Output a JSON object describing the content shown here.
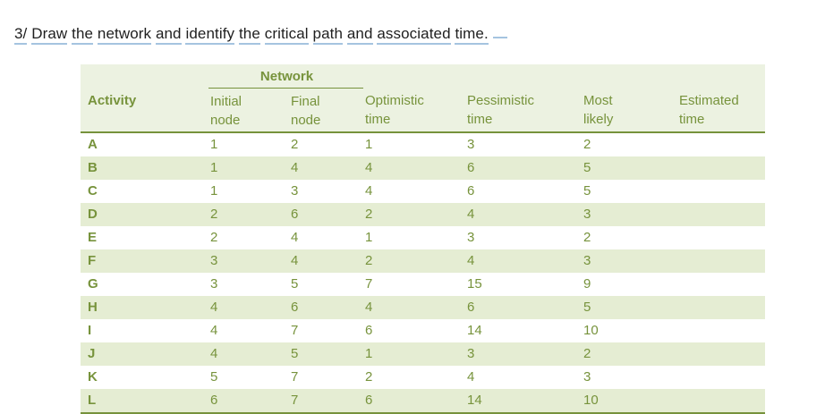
{
  "title": {
    "text": "3/ Draw the network and identify the critical path and associated time.",
    "underline_color": "#a5c4e0",
    "text_color": "#1f1f1f"
  },
  "table": {
    "group_header": "Network",
    "columns": [
      {
        "label": "Activity",
        "lines": [
          "Activity"
        ]
      },
      {
        "label": "Initial node",
        "lines": [
          "Initial",
          "node"
        ]
      },
      {
        "label": "Final node",
        "lines": [
          "Final",
          "node"
        ]
      },
      {
        "label": "Optimistic time",
        "lines": [
          "Optimistic",
          "time"
        ]
      },
      {
        "label": "Pessimistic time",
        "lines": [
          "Pessimistic",
          "time"
        ]
      },
      {
        "label": "Most likely",
        "lines": [
          "Most",
          "likely"
        ]
      },
      {
        "label": "Estimated time",
        "lines": [
          "Estimated",
          "time"
        ]
      }
    ],
    "colors": {
      "text": "#77933c",
      "border": "#76923c",
      "band": "#e5edd3",
      "header_bg": "#ecf2e1"
    },
    "rows": [
      {
        "activity": "A",
        "initial": "1",
        "final": "2",
        "optimistic": "1",
        "pessimistic": "3",
        "most_likely": "2",
        "estimated": ""
      },
      {
        "activity": "B",
        "initial": "1",
        "final": "4",
        "optimistic": "4",
        "pessimistic": "6",
        "most_likely": "5",
        "estimated": ""
      },
      {
        "activity": "C",
        "initial": "1",
        "final": "3",
        "optimistic": "4",
        "pessimistic": "6",
        "most_likely": "5",
        "estimated": ""
      },
      {
        "activity": "D",
        "initial": "2",
        "final": "6",
        "optimistic": "2",
        "pessimistic": "4",
        "most_likely": "3",
        "estimated": ""
      },
      {
        "activity": "E",
        "initial": "2",
        "final": "4",
        "optimistic": "1",
        "pessimistic": "3",
        "most_likely": "2",
        "estimated": ""
      },
      {
        "activity": "F",
        "initial": "3",
        "final": "4",
        "optimistic": "2",
        "pessimistic": "4",
        "most_likely": "3",
        "estimated": ""
      },
      {
        "activity": "G",
        "initial": "3",
        "final": "5",
        "optimistic": "7",
        "pessimistic": "15",
        "most_likely": "9",
        "estimated": ""
      },
      {
        "activity": "H",
        "initial": "4",
        "final": "6",
        "optimistic": "4",
        "pessimistic": "6",
        "most_likely": "5",
        "estimated": ""
      },
      {
        "activity": "I",
        "initial": "4",
        "final": "7",
        "optimistic": "6",
        "pessimistic": "14",
        "most_likely": "10",
        "estimated": ""
      },
      {
        "activity": "J",
        "initial": "4",
        "final": "5",
        "optimistic": "1",
        "pessimistic": "3",
        "most_likely": "2",
        "estimated": ""
      },
      {
        "activity": "K",
        "initial": "5",
        "final": "7",
        "optimistic": "2",
        "pessimistic": "4",
        "most_likely": "3",
        "estimated": ""
      },
      {
        "activity": "L",
        "initial": "6",
        "final": "7",
        "optimistic": "6",
        "pessimistic": "14",
        "most_likely": "10",
        "estimated": ""
      }
    ]
  }
}
